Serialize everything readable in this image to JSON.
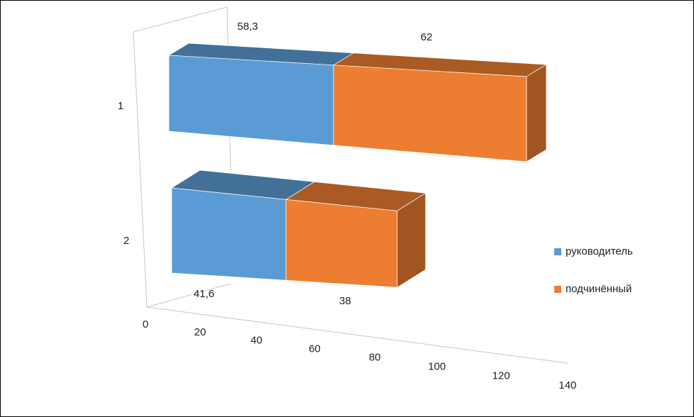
{
  "chart_data": {
    "type": "bar3d_stacked_horizontal",
    "categories": [
      "1",
      "2"
    ],
    "series": [
      {
        "name": "руководитель",
        "color": "#5b9bd5",
        "values": [
          58.3,
          41.6
        ],
        "value_labels": [
          "58,3",
          "41,6"
        ]
      },
      {
        "name": "подчинённый",
        "color": "#ed7d31",
        "values": [
          62,
          38
        ]
      }
    ],
    "xlim": [
      0,
      140
    ],
    "xticks": [
      0,
      20,
      40,
      60,
      80,
      100,
      120,
      140
    ],
    "legend": "right"
  }
}
